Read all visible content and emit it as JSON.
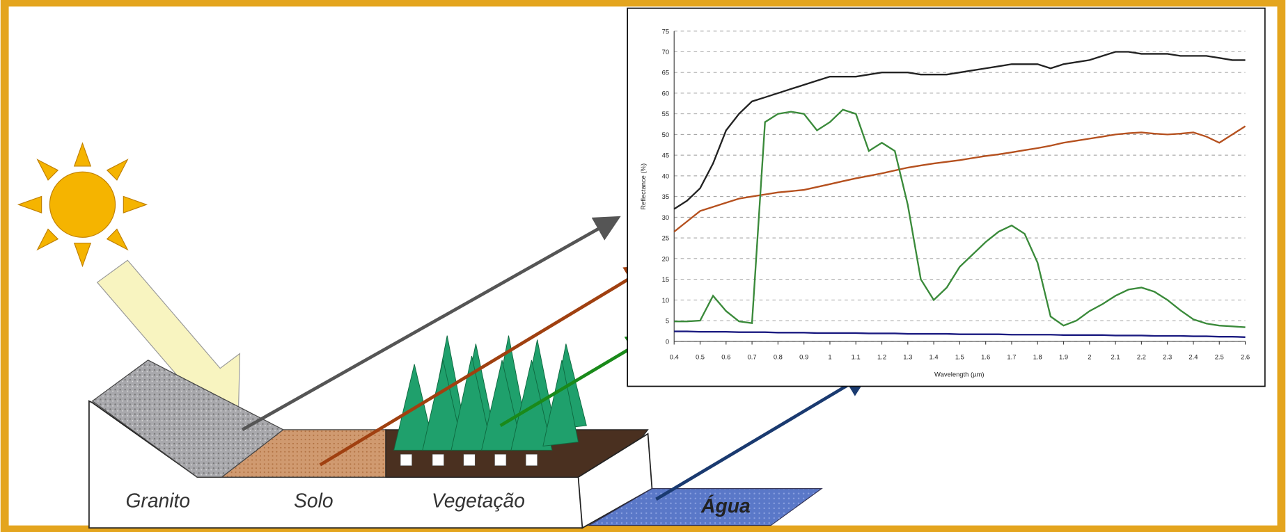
{
  "chart_data": {
    "type": "line",
    "xlabel": "Wavelength (µm)",
    "ylabel": "Reflectance (%)",
    "x": [
      0.4,
      0.45,
      0.5,
      0.55,
      0.6,
      0.65,
      0.7,
      0.75,
      0.8,
      0.85,
      0.9,
      0.95,
      1,
      1.05,
      1.1,
      1.15,
      1.2,
      1.25,
      1.3,
      1.35,
      1.4,
      1.45,
      1.5,
      1.55,
      1.6,
      1.65,
      1.7,
      1.75,
      1.8,
      1.85,
      1.9,
      1.95,
      2,
      2.05,
      2.1,
      2.15,
      2.2,
      2.25,
      2.3,
      2.35,
      2.4,
      2.45,
      2.5,
      2.55,
      2.6
    ],
    "series": [
      {
        "color": "#222222",
        "values": [
          32,
          34,
          37,
          43,
          51,
          55,
          58,
          59,
          60,
          61,
          62,
          63,
          64,
          64,
          64,
          64.5,
          65,
          65,
          65,
          64.5,
          64.5,
          64.5,
          65,
          65.5,
          66,
          66.5,
          67,
          67,
          67,
          66,
          67,
          67.5,
          68,
          69,
          70,
          70,
          69.5,
          69.5,
          69.5,
          69,
          69,
          69,
          68.5,
          68,
          68
        ]
      },
      {
        "color": "#b5501e",
        "values": [
          26.5,
          29,
          31.5,
          32.5,
          33.5,
          34.5,
          35,
          35.5,
          36,
          36.3,
          36.6,
          37.3,
          38,
          38.7,
          39.4,
          40,
          40.6,
          41.3,
          42,
          42.5,
          43,
          43.4,
          43.8,
          44.3,
          44.8,
          45.2,
          45.7,
          46.2,
          46.7,
          47.3,
          48,
          48.5,
          49,
          49.5,
          50,
          50.3,
          50.5,
          50.2,
          50,
          50.2,
          50.5,
          49.5,
          48,
          50,
          52
        ]
      },
      {
        "color": "#3a8a3a",
        "values": [
          4.8,
          4.8,
          5,
          11,
          7.3,
          4.8,
          4.4,
          53,
          55,
          55.5,
          55,
          51,
          53,
          56,
          55,
          46,
          48,
          46,
          33,
          15,
          10,
          13,
          18,
          21,
          24,
          26.5,
          28,
          26,
          19,
          6,
          3.8,
          5,
          7.3,
          9,
          11,
          12.5,
          13,
          12,
          10,
          7.5,
          5.3,
          4.3,
          3.8,
          3.6,
          3.4
        ]
      },
      {
        "color": "#1a1a80",
        "values": [
          2.4,
          2.4,
          2.3,
          2.3,
          2.3,
          2.2,
          2.2,
          2.2,
          2.1,
          2.1,
          2.1,
          2,
          2,
          2,
          2,
          1.9,
          1.9,
          1.9,
          1.8,
          1.8,
          1.8,
          1.8,
          1.7,
          1.7,
          1.7,
          1.7,
          1.6,
          1.6,
          1.6,
          1.6,
          1.5,
          1.5,
          1.5,
          1.5,
          1.4,
          1.4,
          1.4,
          1.3,
          1.3,
          1.3,
          1.2,
          1.2,
          1.1,
          1.1,
          1
        ]
      }
    ],
    "xlim": [
      0.4,
      2.6
    ],
    "ylim": [
      0,
      75
    ],
    "xticks": [
      0.4,
      0.5,
      0.6,
      0.7,
      0.8,
      0.9,
      1,
      1.1,
      1.2,
      1.3,
      1.4,
      1.5,
      1.6,
      1.7,
      1.8,
      1.9,
      2,
      2.1,
      2.2,
      2.3,
      2.4,
      2.5,
      2.6
    ],
    "yticks": [
      0,
      5,
      10,
      15,
      20,
      25,
      30,
      35,
      40,
      45,
      50,
      55,
      60,
      65,
      70,
      75
    ],
    "grid": true
  },
  "scene": {
    "labels": [
      "Granito",
      "Solo",
      "Vegetação",
      "Água"
    ]
  }
}
